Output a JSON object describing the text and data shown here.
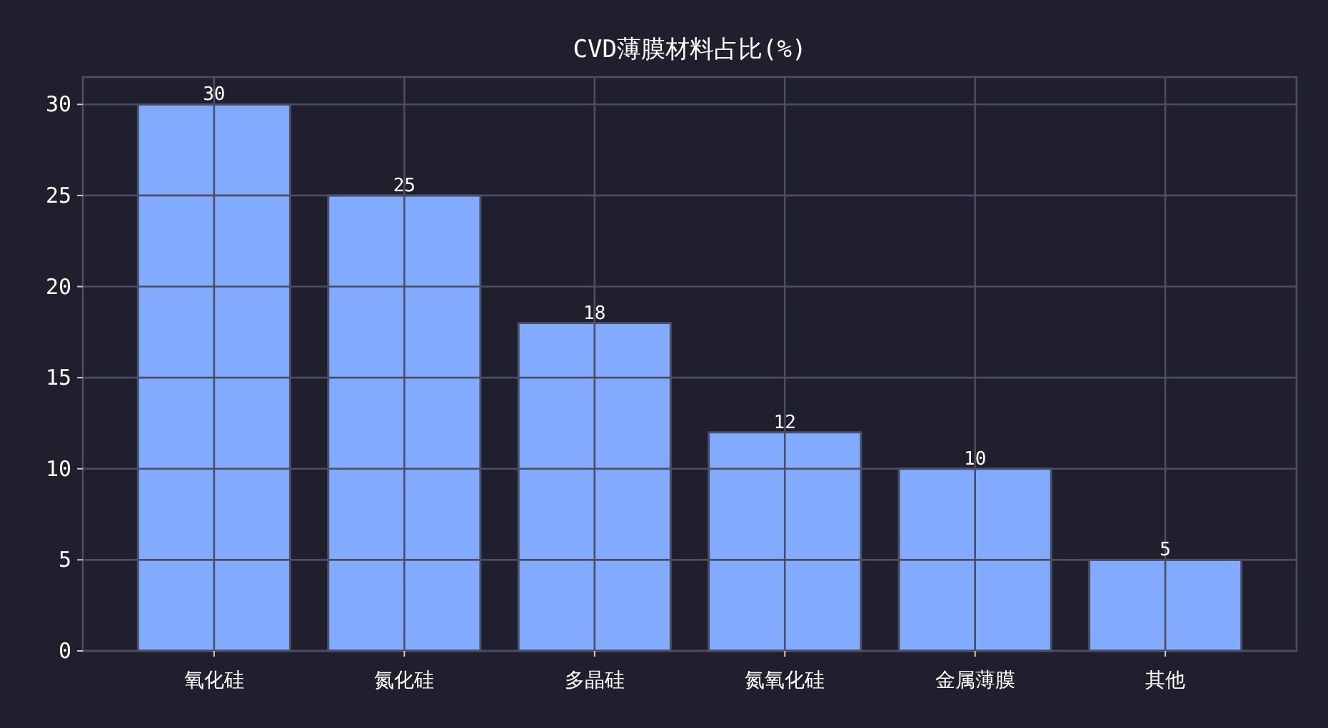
{
  "chart_data": {
    "type": "bar",
    "title": "CVD薄膜材料占比(%)",
    "categories": [
      "氧化硅",
      "氮化硅",
      "多晶硅",
      "氮氧化硅",
      "金属薄膜",
      "其他"
    ],
    "values": [
      30,
      25,
      18,
      12,
      10,
      5
    ],
    "color": "#82aaff",
    "ylim": [
      0,
      31.5
    ],
    "yticks": [
      0,
      5,
      10,
      15,
      20,
      25,
      30
    ],
    "grid": true,
    "data_labels": true
  }
}
